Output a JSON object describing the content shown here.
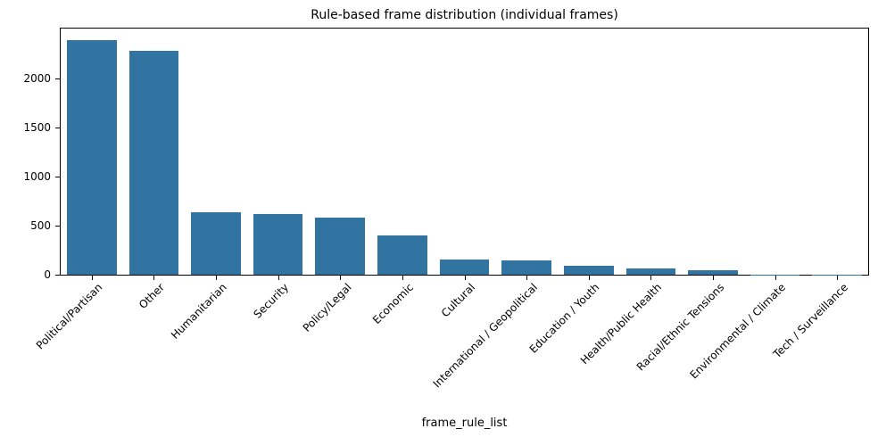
{
  "figure": {
    "background": "#ffffff",
    "spine_color": "#000000",
    "text_color": "#000000"
  },
  "chart_data": {
    "type": "bar",
    "title": "Rule-based frame distribution (individual frames)",
    "xlabel": "frame_rule_list",
    "ylabel": "",
    "categories": [
      "Political/Partisan",
      "Other",
      "Humanitarian",
      "Security",
      "Policy/Legal",
      "Economic",
      "Cultural",
      "International / Geopolitical",
      "Education / Youth",
      "Health/Public Health",
      "Racial/Ethnic Tensions",
      "Environmental / Climate",
      "Tech / Surveillance"
    ],
    "values": [
      2390,
      2280,
      640,
      620,
      585,
      395,
      155,
      145,
      90,
      65,
      48,
      4,
      2
    ],
    "yticks": [
      0,
      500,
      1000,
      1500,
      2000
    ],
    "ylim": [
      0,
      2505
    ],
    "bar_color": "#3274a1",
    "bar_width_fraction": 0.8,
    "xtick_rotation_deg": 45,
    "grid": false,
    "legend": "none"
  }
}
